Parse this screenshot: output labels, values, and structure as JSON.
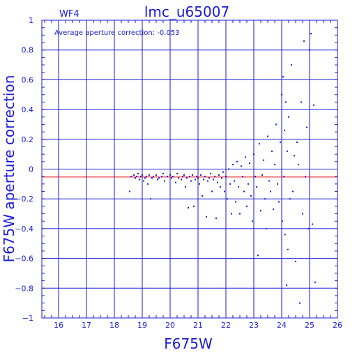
{
  "header": {
    "chip": "WF4",
    "title": "lmc_u65007"
  },
  "annotation": "Average aperture correction: -0.053",
  "chart_data": {
    "type": "scatter",
    "title": "lmc_u65007",
    "xlabel": "F675W",
    "ylabel": "F675W aperture correction",
    "xlim": [
      15.4,
      26.0
    ],
    "ylim": [
      -1.0,
      1.0
    ],
    "x_ticks": [
      16,
      17,
      18,
      19,
      20,
      21,
      22,
      23,
      24,
      25,
      26
    ],
    "y_ticks": [
      -1,
      -0.8,
      -0.6,
      -0.4,
      -0.2,
      0,
      0.2,
      0.4,
      0.6,
      0.8,
      1
    ],
    "x_tick_labels": [
      "16",
      "17",
      "18",
      "19",
      "20",
      "21",
      "22",
      "23",
      "24",
      "25",
      "26"
    ],
    "y_tick_labels": [
      "−1",
      "−0.8",
      "−0.6",
      "−0.4",
      "−0.2",
      "0",
      "0.2",
      "0.4",
      "0.6",
      "0.8",
      "1"
    ],
    "grid": true,
    "reference_line": {
      "y": -0.053,
      "color": "#e01010"
    },
    "colors": {
      "axes": "#1a1ad9",
      "points": "#1a1ad9",
      "reference": "#e01010"
    },
    "series": [
      {
        "points": [
          [
            18.55,
            -0.15
          ],
          [
            18.6,
            -0.05
          ],
          [
            18.7,
            -0.04
          ],
          [
            18.75,
            -0.06
          ],
          [
            18.8,
            -0.05
          ],
          [
            18.85,
            -0.03
          ],
          [
            18.9,
            -0.07
          ],
          [
            18.95,
            -0.05
          ],
          [
            19.0,
            -0.04
          ],
          [
            19.05,
            -0.08
          ],
          [
            19.1,
            -0.06
          ],
          [
            19.15,
            -0.05
          ],
          [
            19.2,
            -0.1
          ],
          [
            19.25,
            -0.04
          ],
          [
            19.3,
            -0.2
          ],
          [
            19.35,
            -0.06
          ],
          [
            19.4,
            -0.05
          ],
          [
            19.5,
            -0.04
          ],
          [
            19.55,
            -0.07
          ],
          [
            19.6,
            -0.06
          ],
          [
            19.7,
            -0.05
          ],
          [
            19.75,
            -0.03
          ],
          [
            19.8,
            -0.08
          ],
          [
            19.9,
            -0.05
          ],
          [
            20.0,
            -0.04
          ],
          [
            20.05,
            -0.06
          ],
          [
            20.1,
            -0.05
          ],
          [
            20.2,
            -0.09
          ],
          [
            20.25,
            -0.03
          ],
          [
            20.3,
            -0.06
          ],
          [
            20.4,
            -0.07
          ],
          [
            20.45,
            -0.05
          ],
          [
            20.5,
            -0.04
          ],
          [
            20.55,
            -0.12
          ],
          [
            20.6,
            -0.06
          ],
          [
            20.65,
            -0.26
          ],
          [
            20.7,
            -0.05
          ],
          [
            20.75,
            -0.08
          ],
          [
            20.8,
            -0.04
          ],
          [
            20.85,
            -0.25
          ],
          [
            20.9,
            -0.07
          ],
          [
            20.95,
            -0.05
          ],
          [
            21.0,
            -0.06
          ],
          [
            21.05,
            -0.1
          ],
          [
            21.1,
            -0.04
          ],
          [
            21.15,
            -0.18
          ],
          [
            21.2,
            -0.07
          ],
          [
            21.25,
            -0.05
          ],
          [
            21.3,
            -0.32
          ],
          [
            21.35,
            -0.08
          ],
          [
            21.4,
            -0.06
          ],
          [
            21.45,
            -0.03
          ],
          [
            21.5,
            -0.15
          ],
          [
            21.55,
            -0.07
          ],
          [
            21.6,
            -0.05
          ],
          [
            21.65,
            -0.33
          ],
          [
            21.7,
            -0.09
          ],
          [
            21.75,
            -0.04
          ],
          [
            21.8,
            -0.12
          ],
          [
            21.85,
            -0.06
          ],
          [
            21.9,
            -0.02
          ],
          [
            21.95,
            -0.15
          ],
          [
            22.0,
            -0.05
          ],
          [
            22.05,
            -0.2
          ],
          [
            22.1,
            0.0
          ],
          [
            22.15,
            -0.1
          ],
          [
            22.2,
            -0.3
          ],
          [
            22.25,
            0.03
          ],
          [
            22.3,
            -0.08
          ],
          [
            22.35,
            -0.22
          ],
          [
            22.4,
            0.05
          ],
          [
            22.45,
            -0.12
          ],
          [
            22.5,
            -0.3
          ],
          [
            22.55,
            0.02
          ],
          [
            22.6,
            -0.05
          ],
          [
            22.65,
            -0.15
          ],
          [
            22.7,
            0.08
          ],
          [
            22.75,
            -0.25
          ],
          [
            22.8,
            -0.1
          ],
          [
            22.85,
            0.04
          ],
          [
            22.9,
            -0.18
          ],
          [
            22.95,
            -0.35
          ],
          [
            23.0,
            0.1
          ],
          [
            23.05,
            -0.05
          ],
          [
            23.1,
            -0.12
          ],
          [
            23.15,
            -0.58
          ],
          [
            23.2,
            0.17
          ],
          [
            23.25,
            -0.28
          ],
          [
            23.3,
            -0.04
          ],
          [
            23.35,
            0.06
          ],
          [
            23.4,
            -0.2
          ],
          [
            23.45,
            -0.4
          ],
          [
            23.5,
            0.22
          ],
          [
            23.55,
            -0.08
          ],
          [
            23.6,
            -0.15
          ],
          [
            23.65,
            0.12
          ],
          [
            23.7,
            -0.27
          ],
          [
            23.75,
            0.03
          ],
          [
            23.8,
            0.3
          ],
          [
            23.85,
            -0.1
          ],
          [
            23.9,
            -0.22
          ],
          [
            23.95,
            0.18
          ],
          [
            24.0,
            0.5
          ],
          [
            24.02,
            -0.35
          ],
          [
            24.05,
            0.62
          ],
          [
            24.08,
            -0.05
          ],
          [
            24.1,
            0.26
          ],
          [
            24.12,
            -0.44
          ],
          [
            24.15,
            0.45
          ],
          [
            24.18,
            -0.78
          ],
          [
            24.2,
            0.12
          ],
          [
            24.22,
            -0.54
          ],
          [
            24.25,
            0.35
          ],
          [
            24.3,
            -0.2
          ],
          [
            24.35,
            0.7
          ],
          [
            24.4,
            -0.15
          ],
          [
            24.45,
            0.09
          ],
          [
            24.5,
            -0.62
          ],
          [
            24.55,
            0.18
          ],
          [
            24.6,
            0.03
          ],
          [
            24.65,
            -0.9
          ],
          [
            24.7,
            0.45
          ],
          [
            24.75,
            -0.3
          ],
          [
            24.8,
            0.86
          ],
          [
            24.85,
            -0.05
          ],
          [
            24.9,
            0.28
          ],
          [
            24.95,
            -0.4
          ],
          [
            25.0,
            0.8
          ],
          [
            25.05,
            0.91
          ],
          [
            25.1,
            -0.37
          ],
          [
            25.15,
            0.43
          ],
          [
            25.2,
            -0.76
          ]
        ]
      }
    ]
  }
}
